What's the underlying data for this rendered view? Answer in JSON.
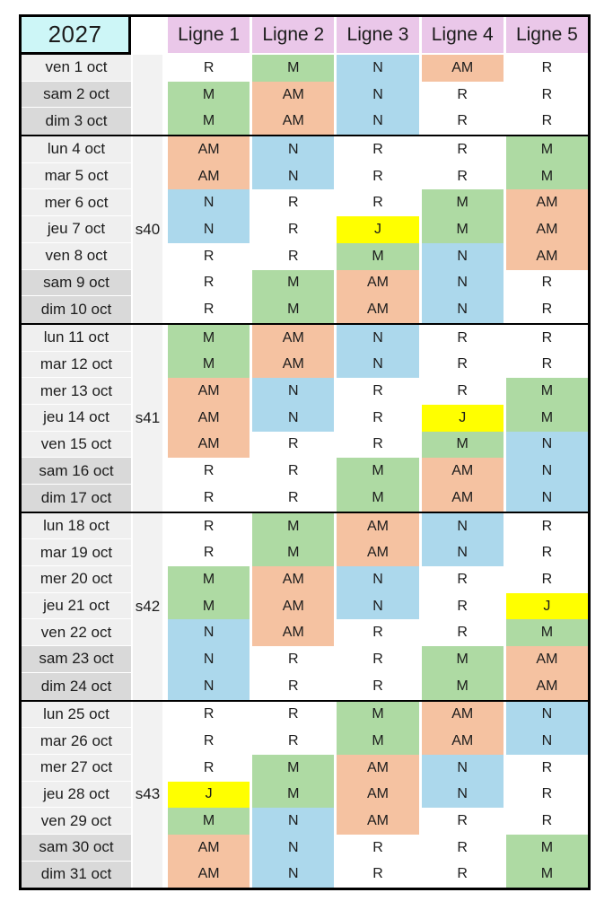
{
  "header": {
    "year": "2027",
    "columns": [
      "Ligne 1",
      "Ligne 2",
      "Ligne 3",
      "Ligne 4",
      "Ligne 5"
    ]
  },
  "shift_colors": {
    "R": "#FFFFFF",
    "M": "#AEDAA3",
    "N": "#ACD8EC",
    "AM": "#F5C2A1",
    "J": "#FFFF00"
  },
  "style_colors": {
    "year_bg": "#CDF6F7",
    "column_header_bg": "#EAC7E9",
    "weekday_date_bg": "#EFEFEF",
    "weekend_date_bg": "#D9D9D9",
    "week_label_bg": "#F2F2F2",
    "border": "#000000"
  },
  "schedule": {
    "weeks": [
      {
        "label": "",
        "days": [
          {
            "date": "ven 1 oct",
            "weekend": false,
            "shifts": [
              "R",
              "M",
              "N",
              "AM",
              "R"
            ]
          },
          {
            "date": "sam 2 oct",
            "weekend": true,
            "shifts": [
              "M",
              "AM",
              "N",
              "R",
              "R"
            ]
          },
          {
            "date": "dim 3 oct",
            "weekend": true,
            "shifts": [
              "M",
              "AM",
              "N",
              "R",
              "R"
            ]
          }
        ]
      },
      {
        "label": "s40",
        "days": [
          {
            "date": "lun 4 oct",
            "weekend": false,
            "shifts": [
              "AM",
              "N",
              "R",
              "R",
              "M"
            ]
          },
          {
            "date": "mar 5 oct",
            "weekend": false,
            "shifts": [
              "AM",
              "N",
              "R",
              "R",
              "M"
            ]
          },
          {
            "date": "mer 6 oct",
            "weekend": false,
            "shifts": [
              "N",
              "R",
              "R",
              "M",
              "AM"
            ]
          },
          {
            "date": "jeu 7 oct",
            "weekend": false,
            "shifts": [
              "N",
              "R",
              "J",
              "M",
              "AM"
            ]
          },
          {
            "date": "ven 8 oct",
            "weekend": false,
            "shifts": [
              "R",
              "R",
              "M",
              "N",
              "AM"
            ]
          },
          {
            "date": "sam 9 oct",
            "weekend": true,
            "shifts": [
              "R",
              "M",
              "AM",
              "N",
              "R"
            ]
          },
          {
            "date": "dim 10 oct",
            "weekend": true,
            "shifts": [
              "R",
              "M",
              "AM",
              "N",
              "R"
            ]
          }
        ]
      },
      {
        "label": "s41",
        "days": [
          {
            "date": "lun 11 oct",
            "weekend": false,
            "shifts": [
              "M",
              "AM",
              "N",
              "R",
              "R"
            ]
          },
          {
            "date": "mar 12 oct",
            "weekend": false,
            "shifts": [
              "M",
              "AM",
              "N",
              "R",
              "R"
            ]
          },
          {
            "date": "mer 13 oct",
            "weekend": false,
            "shifts": [
              "AM",
              "N",
              "R",
              "R",
              "M"
            ]
          },
          {
            "date": "jeu 14 oct",
            "weekend": false,
            "shifts": [
              "AM",
              "N",
              "R",
              "J",
              "M"
            ]
          },
          {
            "date": "ven 15 oct",
            "weekend": false,
            "shifts": [
              "AM",
              "R",
              "R",
              "M",
              "N"
            ]
          },
          {
            "date": "sam 16 oct",
            "weekend": true,
            "shifts": [
              "R",
              "R",
              "M",
              "AM",
              "N"
            ]
          },
          {
            "date": "dim 17 oct",
            "weekend": true,
            "shifts": [
              "R",
              "R",
              "M",
              "AM",
              "N"
            ]
          }
        ]
      },
      {
        "label": "s42",
        "days": [
          {
            "date": "lun 18 oct",
            "weekend": false,
            "shifts": [
              "R",
              "M",
              "AM",
              "N",
              "R"
            ]
          },
          {
            "date": "mar 19 oct",
            "weekend": false,
            "shifts": [
              "R",
              "M",
              "AM",
              "N",
              "R"
            ]
          },
          {
            "date": "mer 20 oct",
            "weekend": false,
            "shifts": [
              "M",
              "AM",
              "N",
              "R",
              "R"
            ]
          },
          {
            "date": "jeu 21 oct",
            "weekend": false,
            "shifts": [
              "M",
              "AM",
              "N",
              "R",
              "J"
            ]
          },
          {
            "date": "ven 22 oct",
            "weekend": false,
            "shifts": [
              "N",
              "AM",
              "R",
              "R",
              "M"
            ]
          },
          {
            "date": "sam 23 oct",
            "weekend": true,
            "shifts": [
              "N",
              "R",
              "R",
              "M",
              "AM"
            ]
          },
          {
            "date": "dim 24 oct",
            "weekend": true,
            "shifts": [
              "N",
              "R",
              "R",
              "M",
              "AM"
            ]
          }
        ]
      },
      {
        "label": "s43",
        "days": [
          {
            "date": "lun 25 oct",
            "weekend": false,
            "shifts": [
              "R",
              "R",
              "M",
              "AM",
              "N"
            ]
          },
          {
            "date": "mar 26 oct",
            "weekend": false,
            "shifts": [
              "R",
              "R",
              "M",
              "AM",
              "N"
            ]
          },
          {
            "date": "mer 27 oct",
            "weekend": false,
            "shifts": [
              "R",
              "M",
              "AM",
              "N",
              "R"
            ]
          },
          {
            "date": "jeu 28 oct",
            "weekend": false,
            "shifts": [
              "J",
              "M",
              "AM",
              "N",
              "R"
            ]
          },
          {
            "date": "ven 29 oct",
            "weekend": false,
            "shifts": [
              "M",
              "N",
              "AM",
              "R",
              "R"
            ]
          },
          {
            "date": "sam 30 oct",
            "weekend": true,
            "shifts": [
              "AM",
              "N",
              "R",
              "R",
              "M"
            ]
          },
          {
            "date": "dim 31 oct",
            "weekend": true,
            "shifts": [
              "AM",
              "N",
              "R",
              "R",
              "M"
            ]
          }
        ]
      }
    ]
  }
}
